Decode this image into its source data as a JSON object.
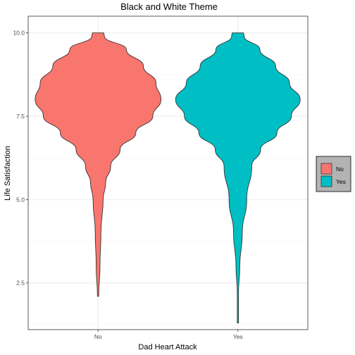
{
  "chart_data": {
    "type": "violin",
    "title": "Black and White Theme",
    "xlabel": "Dad Heart Attack",
    "ylabel": "Life Satisfaction",
    "categories": [
      "No",
      "Yes"
    ],
    "ylim": [
      1.1,
      10.5
    ],
    "yticks": [
      2.5,
      5.0,
      7.5,
      10.0
    ],
    "ytick_labels": [
      "2.5",
      "5.0",
      "7.5",
      "10.0"
    ],
    "grid": true,
    "legend": {
      "position": "right",
      "items": [
        {
          "label": "No",
          "color": "#F8766D"
        },
        {
          "label": "Yes",
          "color": "#00BFC4"
        }
      ]
    },
    "series": [
      {
        "name": "No",
        "color": "#F8766D",
        "min": 2.1,
        "max": 10.0,
        "profile": [
          [
            2.1,
            0.01
          ],
          [
            3.0,
            0.03
          ],
          [
            4.0,
            0.045
          ],
          [
            5.0,
            0.08
          ],
          [
            5.5,
            0.12
          ],
          [
            6.0,
            0.2
          ],
          [
            6.5,
            0.35
          ],
          [
            7.0,
            0.6
          ],
          [
            7.5,
            0.87
          ],
          [
            8.0,
            1.0
          ],
          [
            8.5,
            0.92
          ],
          [
            9.0,
            0.72
          ],
          [
            9.5,
            0.45
          ],
          [
            9.9,
            0.1
          ],
          [
            10.0,
            0.09
          ]
        ]
      },
      {
        "name": "Yes",
        "color": "#00BFC4",
        "min": 1.3,
        "max": 10.0,
        "profile": [
          [
            1.3,
            0.01
          ],
          [
            2.2,
            0.01
          ],
          [
            3.0,
            0.03
          ],
          [
            4.0,
            0.07
          ],
          [
            5.0,
            0.14
          ],
          [
            6.0,
            0.22
          ],
          [
            6.5,
            0.36
          ],
          [
            7.0,
            0.62
          ],
          [
            7.5,
            0.85
          ],
          [
            8.0,
            0.99
          ],
          [
            8.5,
            0.82
          ],
          [
            9.0,
            0.6
          ],
          [
            9.5,
            0.35
          ],
          [
            9.9,
            0.1
          ],
          [
            10.0,
            0.09
          ]
        ]
      }
    ]
  }
}
